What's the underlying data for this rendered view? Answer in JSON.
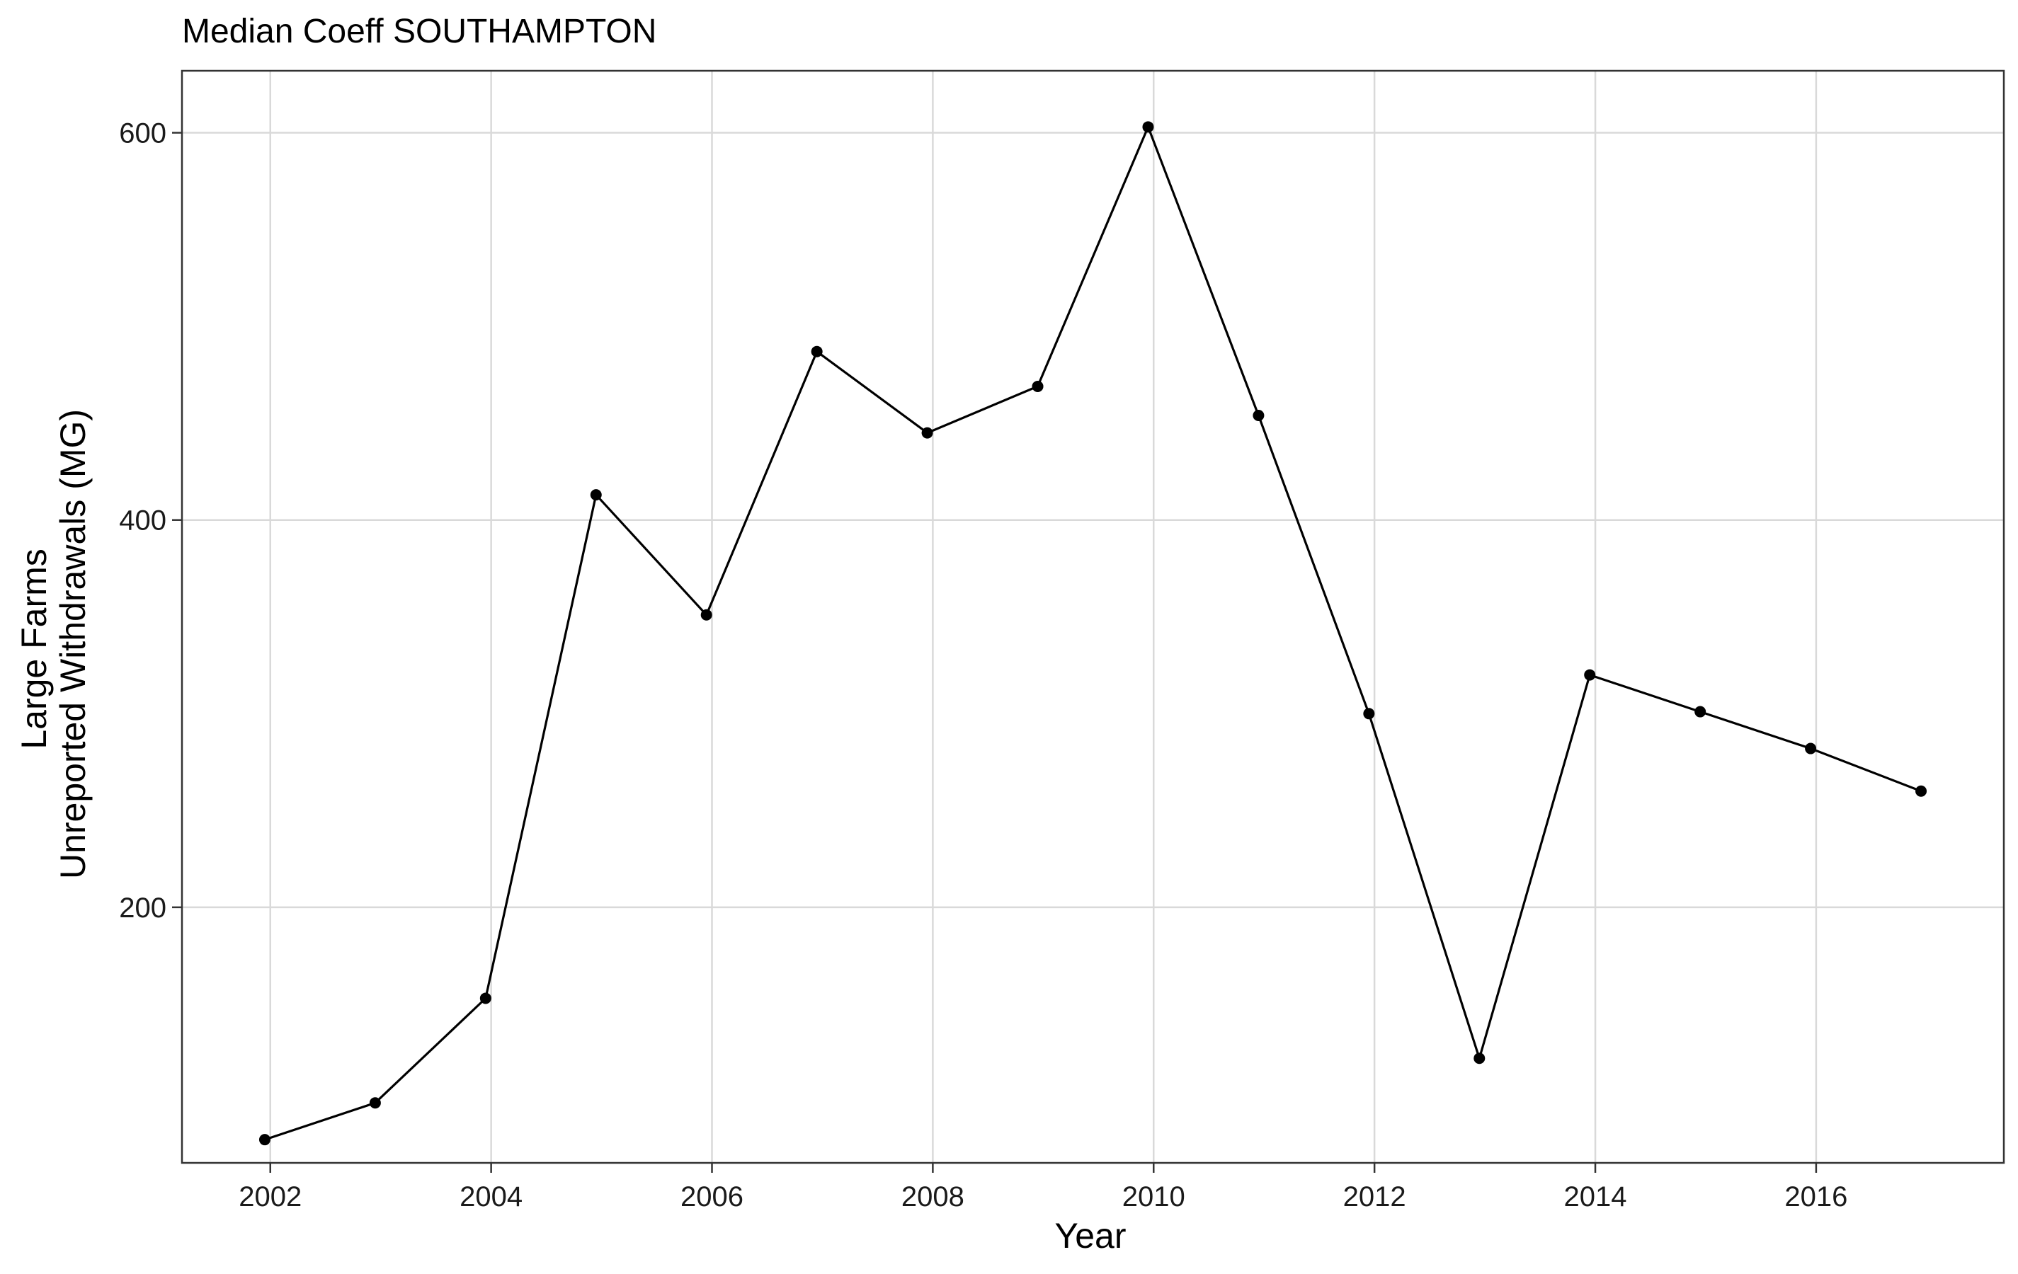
{
  "chart_data": {
    "type": "line",
    "title": "Median Coeff SOUTHAMPTON",
    "xlabel": "Year",
    "ylabel_lines": [
      "Large Farms",
      "Unreported Withdrawals (MG)"
    ],
    "x": [
      2001.95,
      2002.95,
      2003.95,
      2004.95,
      2005.95,
      2006.95,
      2007.95,
      2008.95,
      2009.95,
      2010.95,
      2011.95,
      2012.95,
      2013.95,
      2014.95,
      2015.95,
      2016.95
    ],
    "series": [
      {
        "values": [
          80,
          99,
          153,
          413,
          351,
          487,
          445,
          469,
          603,
          454,
          300,
          122,
          320,
          301,
          282,
          260
        ]
      }
    ],
    "xlim": [
      2001.2,
      2017.7
    ],
    "ylim": [
      68,
      632
    ],
    "x_ticks": [
      2002,
      2004,
      2006,
      2008,
      2010,
      2012,
      2014,
      2016
    ],
    "x_tick_labels": [
      "2002",
      "2004",
      "2006",
      "2008",
      "2010",
      "2012",
      "2014",
      "2016"
    ],
    "y_ticks": [
      200,
      400,
      600
    ],
    "y_tick_labels": [
      "200",
      "400",
      "600"
    ],
    "grid": true,
    "line_color": "#000000",
    "grid_color": "#d9d9d9"
  }
}
